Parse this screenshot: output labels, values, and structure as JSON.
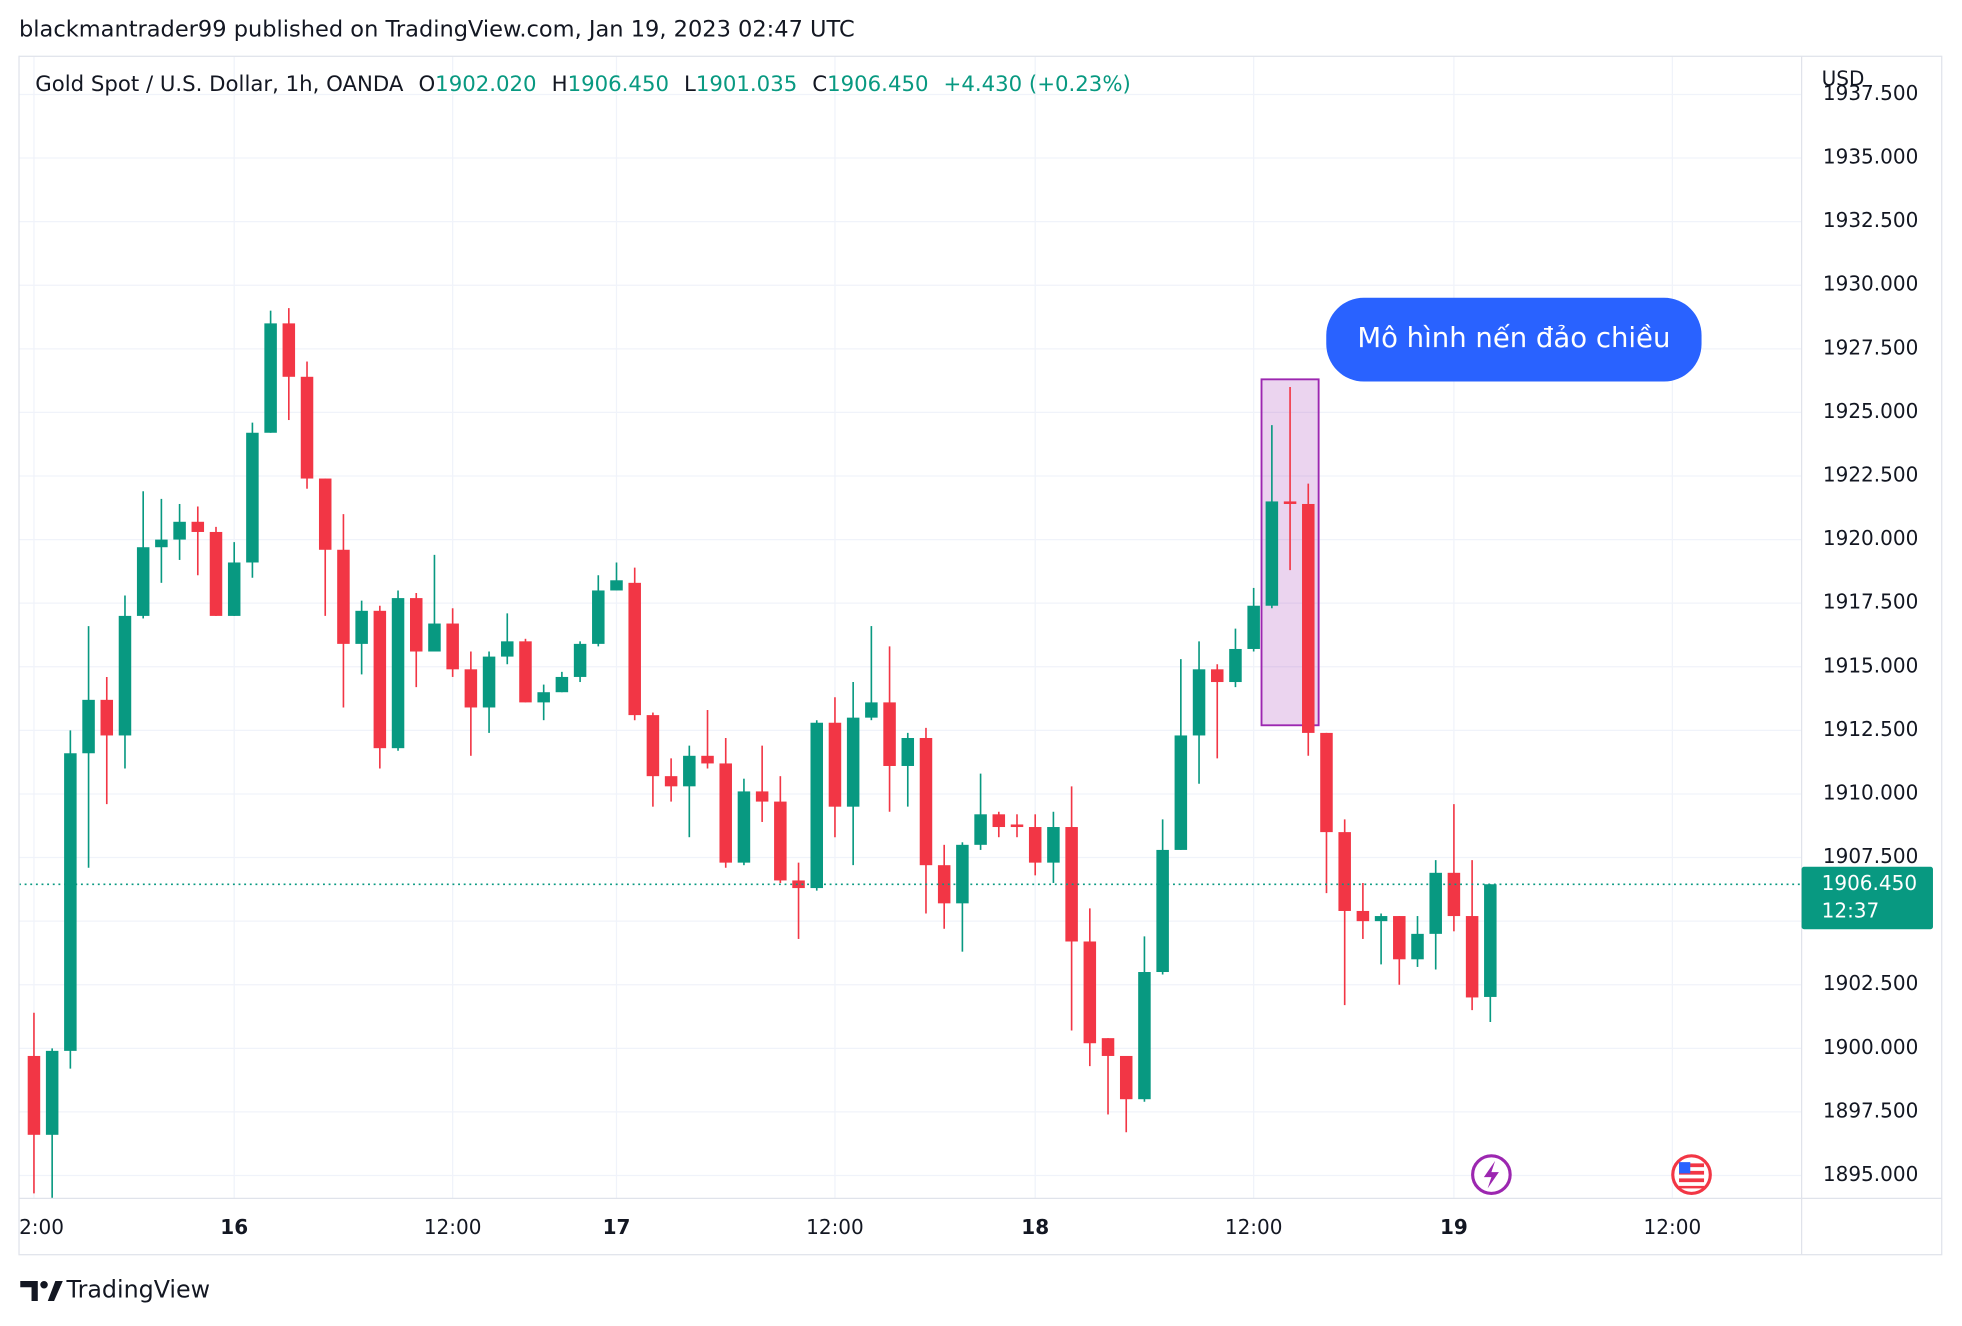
{
  "header": {
    "title": "blackmantrader99 published on TradingView.com, Jan 19, 2023 02:47 UTC"
  },
  "footer": {
    "brand": "TradingView"
  },
  "chart_data": {
    "type": "candlestick",
    "symbol": "Gold Spot / U.S. Dollar, 1h, OANDA",
    "ohlc_legend": [
      {
        "key": "O",
        "value": "1902.020"
      },
      {
        "key": "H",
        "value": "1906.450"
      },
      {
        "key": "L",
        "value": "1901.035"
      },
      {
        "key": "C",
        "value": "1906.450"
      }
    ],
    "change": "+4.430 (+0.23%)",
    "currency": "USD",
    "up_color": "#089981",
    "down_color": "#f23645",
    "open": [
      1899.7,
      1896.6,
      1899.9,
      1911.6,
      1913.7,
      1912.3,
      1917.0,
      1919.7,
      1920.0,
      1920.7,
      1920.3,
      1917.0,
      1919.1,
      1924.2,
      1928.5,
      1926.4,
      1922.4,
      1919.6,
      1915.9,
      1917.2,
      1911.8,
      1917.7,
      1915.6,
      1916.7,
      1914.9,
      1913.4,
      1915.4,
      1916.0,
      1913.6,
      1914.0,
      1914.6,
      1915.9,
      1918.0,
      1918.3,
      1913.1,
      1910.7,
      1910.3,
      1911.5,
      1911.2,
      1907.3,
      1910.1,
      1909.7,
      1906.6,
      1906.3,
      1912.8,
      1909.5,
      1913.0,
      1913.6,
      1911.1,
      1912.2,
      1907.2,
      1905.7,
      1908.0,
      1909.2,
      1908.8,
      1908.7,
      1907.3,
      1908.7,
      1904.2,
      1900.4,
      1899.7,
      1898.0,
      1903.0,
      1907.8,
      1912.3,
      1914.9,
      1914.4,
      1915.7,
      1917.4,
      1921.5,
      1921.4,
      1912.4,
      1908.5,
      1905.4,
      1905.0,
      1905.2,
      1903.5,
      1904.5,
      1906.9,
      1905.2,
      1902.02
    ],
    "high": [
      1901.4,
      1900.0,
      1912.5,
      1916.6,
      1914.6,
      1917.8,
      1921.9,
      1921.6,
      1921.4,
      1921.3,
      1920.5,
      1919.9,
      1924.6,
      1929.0,
      1929.1,
      1927.0,
      1922.4,
      1921.0,
      1917.6,
      1917.4,
      1918.0,
      1917.9,
      1919.4,
      1917.3,
      1915.6,
      1915.6,
      1917.1,
      1916.1,
      1914.3,
      1914.8,
      1916.0,
      1918.6,
      1919.1,
      1918.9,
      1913.2,
      1911.4,
      1911.9,
      1913.3,
      1912.2,
      1910.6,
      1911.9,
      1910.7,
      1907.3,
      1912.9,
      1913.8,
      1914.4,
      1916.6,
      1915.8,
      1912.4,
      1912.6,
      1908.0,
      1908.1,
      1910.8,
      1909.3,
      1909.2,
      1909.2,
      1909.3,
      1910.3,
      1905.5,
      1900.4,
      1899.7,
      1904.4,
      1909.0,
      1915.3,
      1916.0,
      1915.1,
      1916.5,
      1918.1,
      1924.5,
      1926.0,
      1922.2,
      1912.4,
      1909.0,
      1906.5,
      1905.3,
      1905.2,
      1905.2,
      1907.4,
      1909.6,
      1907.4,
      1906.45
    ],
    "low": [
      1894.3,
      1894.1,
      1899.2,
      1907.1,
      1909.6,
      1911.0,
      1916.9,
      1918.3,
      1919.2,
      1918.6,
      1917.0,
      1917.0,
      1918.5,
      1924.2,
      1924.7,
      1922.0,
      1917.0,
      1913.4,
      1914.7,
      1911.0,
      1911.7,
      1914.2,
      1915.6,
      1914.6,
      1911.5,
      1912.4,
      1915.1,
      1913.6,
      1912.9,
      1914.0,
      1914.4,
      1915.8,
      1918.0,
      1912.9,
      1909.5,
      1909.7,
      1908.3,
      1911.0,
      1907.1,
      1907.2,
      1908.9,
      1906.5,
      1904.3,
      1906.2,
      1908.3,
      1907.2,
      1912.9,
      1909.3,
      1909.5,
      1905.3,
      1904.7,
      1903.8,
      1907.8,
      1908.3,
      1908.3,
      1906.8,
      1906.5,
      1900.7,
      1899.3,
      1897.4,
      1896.7,
      1897.9,
      1902.9,
      1907.8,
      1910.4,
      1911.4,
      1914.2,
      1915.6,
      1917.3,
      1918.8,
      1911.5,
      1906.1,
      1901.7,
      1904.3,
      1903.3,
      1902.5,
      1903.2,
      1903.1,
      1904.6,
      1901.5,
      1901.035
    ],
    "close": [
      1896.6,
      1899.9,
      1911.6,
      1913.7,
      1912.3,
      1917.0,
      1919.7,
      1920.0,
      1920.7,
      1920.3,
      1917.0,
      1919.1,
      1924.2,
      1928.5,
      1926.4,
      1922.4,
      1919.6,
      1915.9,
      1917.2,
      1911.8,
      1917.7,
      1915.6,
      1916.7,
      1914.9,
      1913.4,
      1915.4,
      1916.0,
      1913.6,
      1914.0,
      1914.6,
      1915.9,
      1918.0,
      1918.4,
      1913.1,
      1910.7,
      1910.3,
      1911.5,
      1911.2,
      1907.3,
      1910.1,
      1909.7,
      1906.6,
      1906.3,
      1912.8,
      1909.5,
      1913.0,
      1913.6,
      1911.1,
      1912.2,
      1907.2,
      1905.7,
      1908.0,
      1909.2,
      1908.7,
      1908.7,
      1907.3,
      1908.7,
      1904.2,
      1900.2,
      1899.7,
      1898.0,
      1903.0,
      1907.8,
      1912.3,
      1914.9,
      1914.4,
      1915.7,
      1917.4,
      1921.5,
      1921.4,
      1912.4,
      1908.5,
      1905.4,
      1905.0,
      1905.2,
      1903.5,
      1904.5,
      1906.9,
      1905.2,
      1902.0,
      1906.45
    ],
    "xlim": [
      -0.82,
      97.1
    ],
    "xticks": [
      {
        "value": 0,
        "label": "2:00"
      },
      {
        "value": 11,
        "label": "16"
      },
      {
        "value": 23,
        "label": "12:00"
      },
      {
        "value": 32,
        "label": "17"
      },
      {
        "value": 44,
        "label": "12:00"
      },
      {
        "value": 55,
        "label": "18"
      },
      {
        "value": 67,
        "label": "12:00"
      },
      {
        "value": 78,
        "label": "19"
      },
      {
        "value": 90,
        "label": "12:00"
      }
    ],
    "ylim": [
      1894.1,
      1939.0
    ],
    "yticks": [
      {
        "value": 1895,
        "label": "1895.000"
      },
      {
        "value": 1897.5,
        "label": "1897.500"
      },
      {
        "value": 1900,
        "label": "1900.000"
      },
      {
        "value": 1902.5,
        "label": "1902.500"
      },
      {
        "value": 1905,
        "label": "1905.000"
      },
      {
        "value": 1907.5,
        "label": "1907.500"
      },
      {
        "value": 1910,
        "label": "1910.000"
      },
      {
        "value": 1912.5,
        "label": "1912.500"
      },
      {
        "value": 1915,
        "label": "1915.000"
      },
      {
        "value": 1917.5,
        "label": "1917.500"
      },
      {
        "value": 1920,
        "label": "1920.000"
      },
      {
        "value": 1922.5,
        "label": "1922.500"
      },
      {
        "value": 1925,
        "label": "1925.000"
      },
      {
        "value": 1927.5,
        "label": "1927.500"
      },
      {
        "value": 1930,
        "label": "1930.000"
      },
      {
        "value": 1932.5,
        "label": "1932.500"
      },
      {
        "value": 1935,
        "label": "1935.000"
      },
      {
        "value": 1937.5,
        "label": "1937.500"
      }
    ],
    "grid": true,
    "last_price": {
      "value": 1906.45,
      "label": "1906.450"
    },
    "countdown": "12:37",
    "highlight": {
      "start": 68,
      "end": 70,
      "top": 1926.3,
      "bottom": 1912.7
    },
    "annotation": "Mô hình nến đảo chiều"
  }
}
